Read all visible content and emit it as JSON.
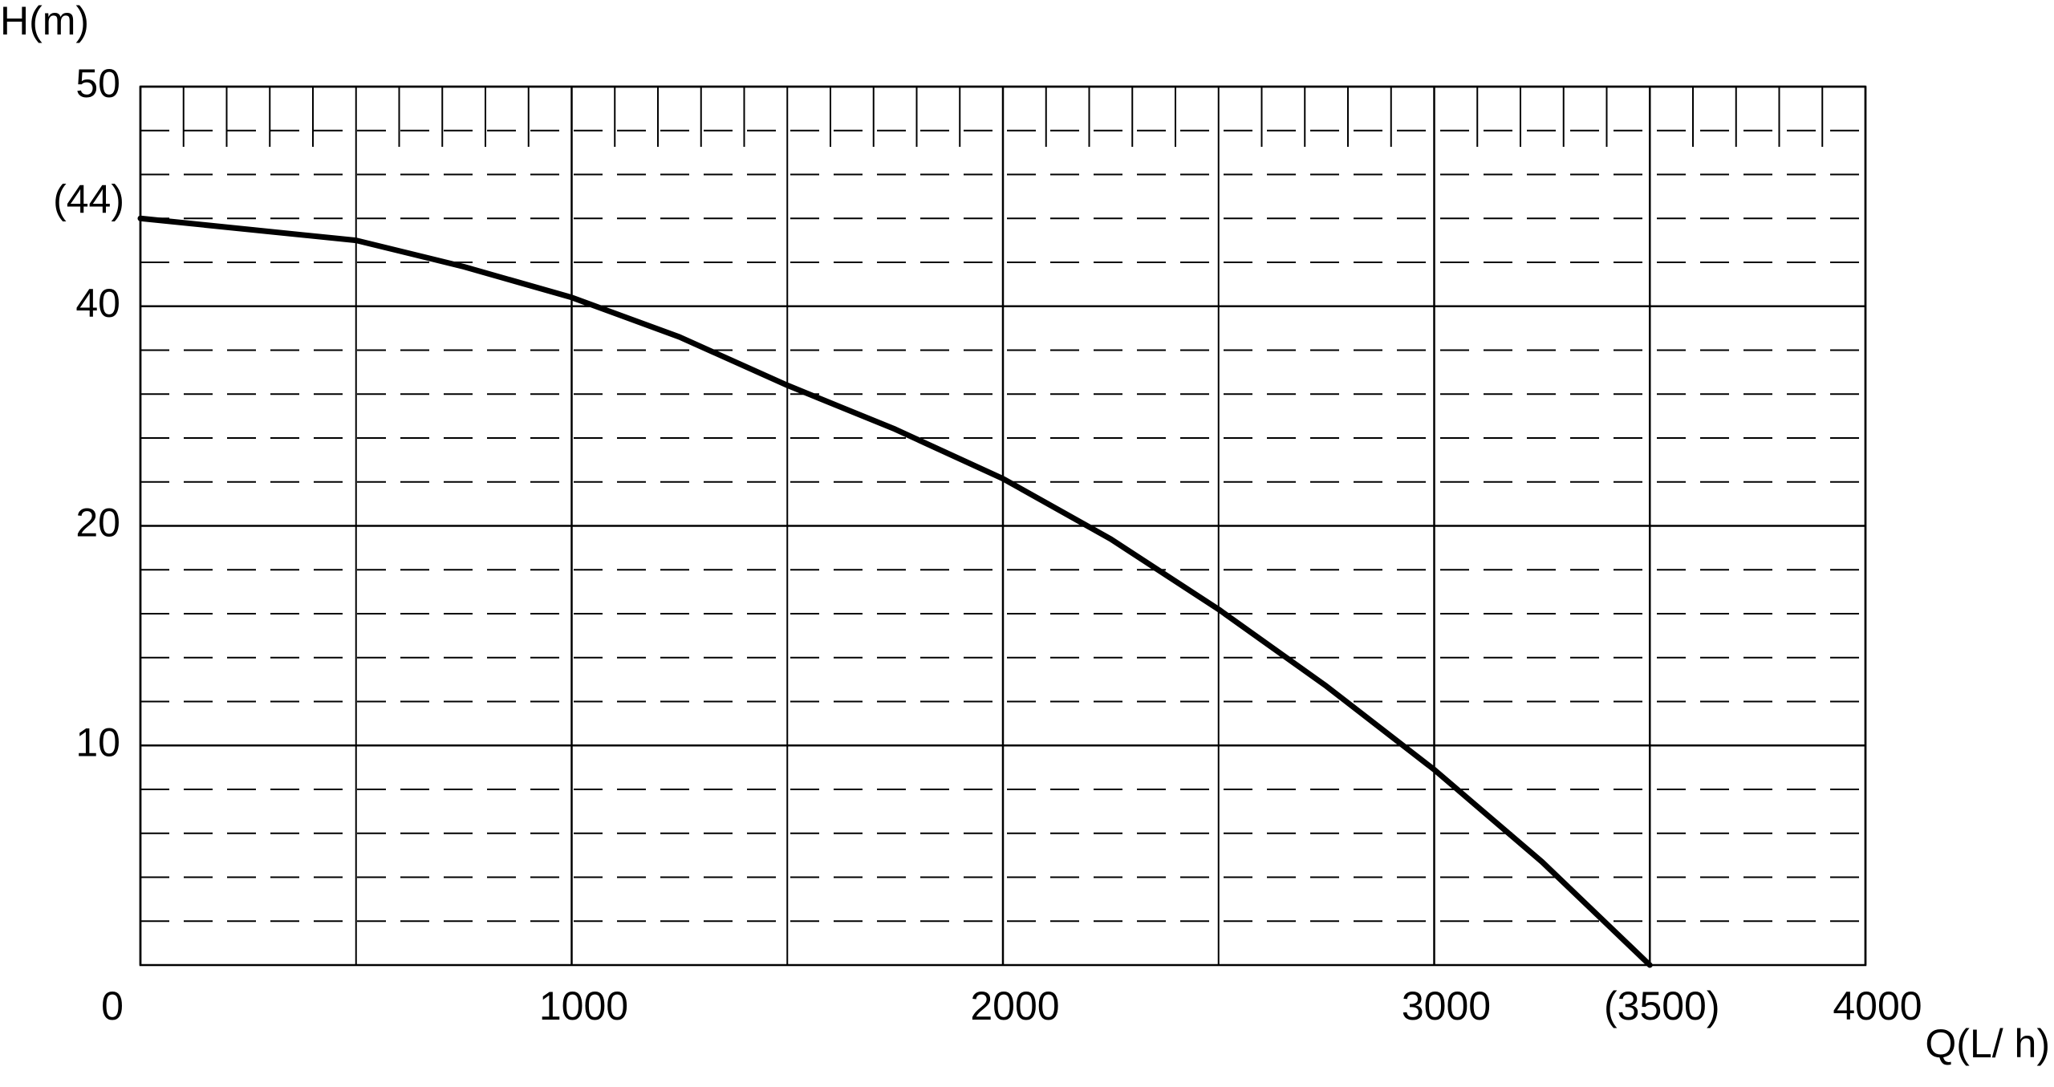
{
  "chart_data": {
    "type": "line",
    "y_label": "H(m)",
    "x_label": "Q(L/ h)",
    "x": [
      0,
      500,
      750,
      1000,
      1250,
      1500,
      1750,
      2000,
      2250,
      2500,
      2750,
      3000,
      3250,
      3500
    ],
    "series": [
      {
        "color": "#000000",
        "values": [
          44,
          43.0,
          41.8,
          40.4,
          37.2,
          32.8,
          28.8,
          24.3,
          19.4,
          16.2,
          12.7,
          8.9,
          4.7,
          0
        ]
      }
    ],
    "xlim": [
      0,
      4000
    ],
    "xticks": [
      0,
      1000,
      2000,
      3000,
      {
        "value": 3500,
        "label": "(3500)"
      },
      4000
    ],
    "ylim": [
      0,
      50
    ],
    "yticks": [
      10,
      20,
      40,
      {
        "value": 44,
        "label": "(44)"
      },
      50
    ],
    "grid": true
  }
}
